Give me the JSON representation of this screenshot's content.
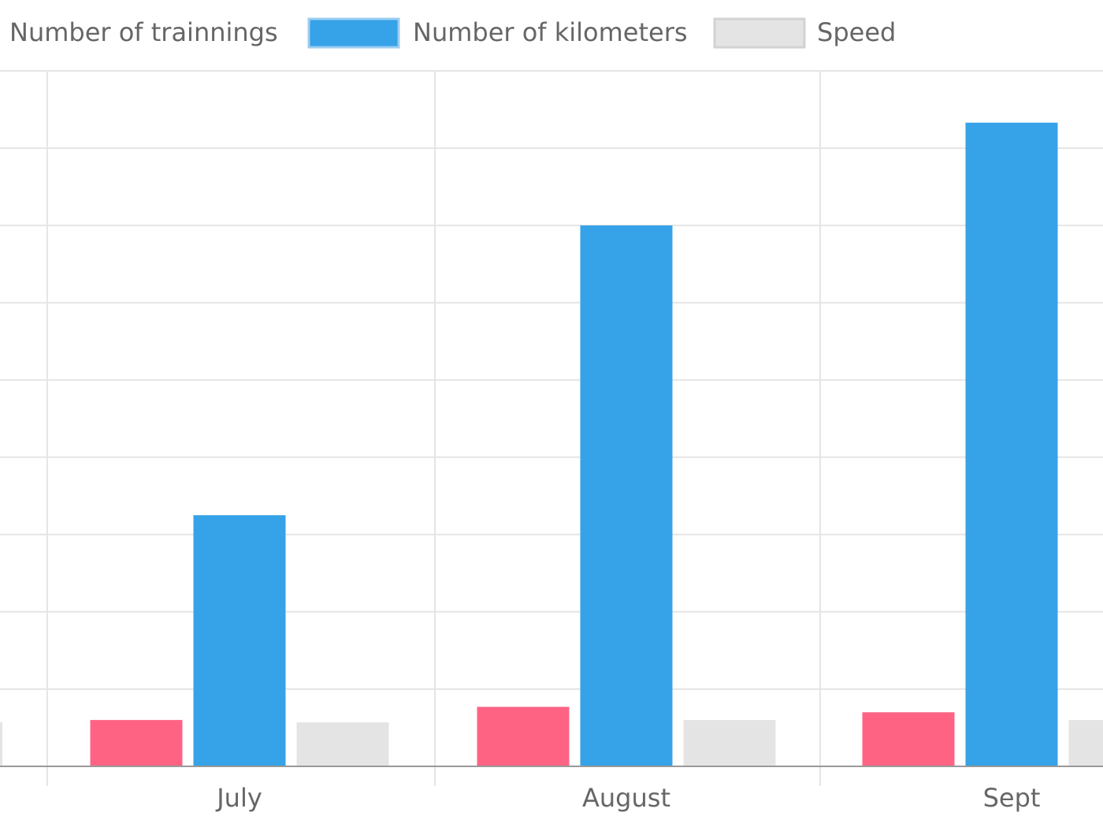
{
  "chart_data": {
    "type": "bar",
    "categories": [
      "July",
      "August",
      "Sept"
    ],
    "series": [
      {
        "name": "Number of trainnings",
        "values": [
          6,
          7.7,
          7
        ],
        "color": "#ff6384"
      },
      {
        "name": "Number of kilometers",
        "values": [
          32.5,
          70,
          83.3
        ],
        "color": "#36a2e8"
      },
      {
        "name": "Speed",
        "values": [
          5.7,
          6,
          6
        ],
        "color": "#e4e4e4"
      }
    ],
    "ylim": [
      0,
      90
    ],
    "grid": true,
    "legend_position": "top"
  }
}
